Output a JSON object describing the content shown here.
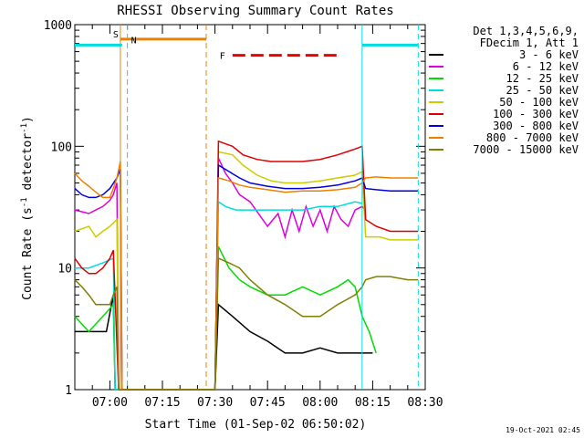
{
  "chart_data": {
    "type": "line",
    "title": "RHESSI Observing Summary Count Rates",
    "xlabel": "Start Time (01-Sep-02 06:50:02)",
    "ylabel_main": "Count Rate (s",
    "ylabel_sup1": "-1",
    "ylabel_mid": " detector",
    "ylabel_sup2": "-1",
    "ylabel_end": ")",
    "x_range_minutes_after_0650": [
      0,
      100
    ],
    "y_range": [
      1,
      1000
    ],
    "y_scale": "log",
    "x_ticks": [
      {
        "label": "07:00",
        "minutes": 10
      },
      {
        "label": "07:15",
        "minutes": 25
      },
      {
        "label": "07:30",
        "minutes": 40
      },
      {
        "label": "07:45",
        "minutes": 55
      },
      {
        "label": "08:00",
        "minutes": 70
      },
      {
        "label": "08:15",
        "minutes": 85
      },
      {
        "label": "08:30",
        "minutes": 100
      }
    ],
    "y_ticks": [
      {
        "label": "1",
        "value": 1
      },
      {
        "label": "10",
        "value": 10
      },
      {
        "label": "100",
        "value": 100
      },
      {
        "label": "1000",
        "value": 1000
      }
    ],
    "legend_header": [
      "Det 1,3,4,5,6,9,",
      "FDecim 1, Att 1"
    ],
    "legend_placement": "right",
    "series": [
      {
        "name": "3 - 6 keV",
        "color": "#000000",
        "points": [
          [
            0,
            3
          ],
          [
            4,
            3
          ],
          [
            6,
            3
          ],
          [
            9,
            3
          ],
          [
            11,
            6
          ],
          [
            11.5,
            1
          ],
          [
            40,
            1
          ],
          [
            41,
            5
          ],
          [
            45,
            4
          ],
          [
            50,
            3
          ],
          [
            55,
            2.5
          ],
          [
            60,
            2
          ],
          [
            65,
            2
          ],
          [
            70,
            2.2
          ],
          [
            75,
            2
          ],
          [
            78,
            2
          ],
          [
            82,
            2
          ],
          [
            85,
            2
          ]
        ]
      },
      {
        "name": "6 - 12 keV",
        "color": "#dd00dd",
        "points": [
          [
            0,
            30
          ],
          [
            4,
            28
          ],
          [
            6,
            30
          ],
          [
            8,
            32
          ],
          [
            10,
            36
          ],
          [
            11,
            40
          ],
          [
            12,
            50
          ],
          [
            12.5,
            1
          ],
          [
            40,
            1
          ],
          [
            41,
            80
          ],
          [
            43,
            60
          ],
          [
            45,
            50
          ],
          [
            47,
            40
          ],
          [
            50,
            35
          ],
          [
            55,
            22
          ],
          [
            58,
            28
          ],
          [
            60,
            18
          ],
          [
            62,
            30
          ],
          [
            64,
            20
          ],
          [
            66,
            32
          ],
          [
            68,
            22
          ],
          [
            70,
            30
          ],
          [
            72,
            20
          ],
          [
            74,
            32
          ],
          [
            76,
            25
          ],
          [
            78,
            22
          ],
          [
            80,
            30
          ],
          [
            82,
            32
          ],
          [
            83,
            30
          ]
        ]
      },
      {
        "name": "12 - 25 keV",
        "color": "#00dd00",
        "points": [
          [
            0,
            4
          ],
          [
            4,
            3
          ],
          [
            8,
            4
          ],
          [
            11,
            5
          ],
          [
            11.5,
            1
          ],
          [
            40,
            1
          ],
          [
            41,
            15
          ],
          [
            44,
            10
          ],
          [
            47,
            8
          ],
          [
            50,
            7
          ],
          [
            55,
            6
          ],
          [
            60,
            6
          ],
          [
            65,
            7
          ],
          [
            70,
            6
          ],
          [
            75,
            7
          ],
          [
            78,
            8
          ],
          [
            80,
            7
          ],
          [
            82,
            4
          ],
          [
            84,
            3
          ],
          [
            86,
            2
          ]
        ]
      },
      {
        "name": "25 - 50 keV",
        "color": "#00dddd",
        "points": [
          [
            0,
            10
          ],
          [
            4,
            10
          ],
          [
            8,
            11
          ],
          [
            11,
            12
          ],
          [
            11.5,
            1
          ],
          [
            40,
            1
          ],
          [
            41,
            35
          ],
          [
            43,
            32
          ],
          [
            46,
            30
          ],
          [
            50,
            30
          ],
          [
            55,
            30
          ],
          [
            60,
            30
          ],
          [
            65,
            30
          ],
          [
            70,
            32
          ],
          [
            75,
            32
          ],
          [
            80,
            35
          ],
          [
            82,
            34
          ]
        ]
      },
      {
        "name": "50 - 100 keV",
        "color": "#cccc00",
        "points": [
          [
            0,
            20
          ],
          [
            4,
            22
          ],
          [
            6,
            18
          ],
          [
            8,
            20
          ],
          [
            10,
            22
          ],
          [
            12,
            25
          ],
          [
            12.5,
            1
          ],
          [
            40,
            1
          ],
          [
            41,
            90
          ],
          [
            45,
            85
          ],
          [
            48,
            70
          ],
          [
            52,
            58
          ],
          [
            56,
            52
          ],
          [
            60,
            50
          ],
          [
            65,
            50
          ],
          [
            70,
            52
          ],
          [
            75,
            55
          ],
          [
            80,
            58
          ],
          [
            82,
            62
          ],
          [
            83,
            18
          ],
          [
            87,
            18
          ],
          [
            90,
            17
          ],
          [
            95,
            17
          ],
          [
            98,
            17
          ]
        ]
      },
      {
        "name": "100 - 300 keV",
        "color": "#dd0000",
        "points": [
          [
            0,
            12
          ],
          [
            2,
            10
          ],
          [
            4,
            9
          ],
          [
            6,
            9
          ],
          [
            8,
            10
          ],
          [
            10,
            12
          ],
          [
            11,
            14
          ],
          [
            12.5,
            1
          ],
          [
            40,
            1
          ],
          [
            41,
            110
          ],
          [
            45,
            100
          ],
          [
            48,
            85
          ],
          [
            52,
            78
          ],
          [
            56,
            75
          ],
          [
            60,
            75
          ],
          [
            65,
            75
          ],
          [
            70,
            78
          ],
          [
            75,
            85
          ],
          [
            80,
            95
          ],
          [
            82,
            100
          ],
          [
            83,
            25
          ],
          [
            86,
            22
          ],
          [
            90,
            20
          ],
          [
            95,
            20
          ],
          [
            98,
            20
          ]
        ]
      },
      {
        "name": "300 - 800 keV",
        "color": "#0000dd",
        "points": [
          [
            0,
            45
          ],
          [
            2,
            40
          ],
          [
            4,
            38
          ],
          [
            6,
            38
          ],
          [
            8,
            40
          ],
          [
            10,
            45
          ],
          [
            12,
            55
          ],
          [
            13,
            65
          ],
          [
            13.5,
            1
          ],
          [
            40,
            1
          ],
          [
            41,
            70
          ],
          [
            44,
            62
          ],
          [
            47,
            55
          ],
          [
            50,
            50
          ],
          [
            55,
            47
          ],
          [
            60,
            45
          ],
          [
            65,
            45
          ],
          [
            70,
            46
          ],
          [
            75,
            48
          ],
          [
            80,
            52
          ],
          [
            82,
            55
          ],
          [
            83,
            45
          ],
          [
            86,
            44
          ],
          [
            90,
            43
          ],
          [
            95,
            43
          ],
          [
            98,
            43
          ]
        ]
      },
      {
        "name": "800 - 7000 keV",
        "color": "#ee8000",
        "points": [
          [
            0,
            60
          ],
          [
            2,
            52
          ],
          [
            4,
            47
          ],
          [
            6,
            42
          ],
          [
            8,
            38
          ],
          [
            10,
            38
          ],
          [
            11,
            45
          ],
          [
            12,
            55
          ],
          [
            13,
            75
          ],
          [
            13.5,
            1
          ],
          [
            40,
            1
          ],
          [
            41,
            55
          ],
          [
            44,
            52
          ],
          [
            47,
            48
          ],
          [
            50,
            46
          ],
          [
            55,
            44
          ],
          [
            60,
            42
          ],
          [
            65,
            43
          ],
          [
            70,
            43
          ],
          [
            75,
            44
          ],
          [
            80,
            46
          ],
          [
            82,
            50
          ],
          [
            83,
            55
          ],
          [
            86,
            56
          ],
          [
            90,
            55
          ],
          [
            95,
            55
          ],
          [
            98,
            55
          ]
        ]
      },
      {
        "name": "7000 - 15000 keV",
        "color": "#808000",
        "points": [
          [
            0,
            8
          ],
          [
            2,
            7
          ],
          [
            4,
            6
          ],
          [
            6,
            5
          ],
          [
            8,
            5
          ],
          [
            10,
            5
          ],
          [
            11,
            6
          ],
          [
            12,
            7
          ],
          [
            12.5,
            1
          ],
          [
            40,
            1
          ],
          [
            41,
            12
          ],
          [
            44,
            11
          ],
          [
            47,
            10
          ],
          [
            50,
            8
          ],
          [
            55,
            6
          ],
          [
            60,
            5
          ],
          [
            65,
            4
          ],
          [
            70,
            4
          ],
          [
            75,
            5
          ],
          [
            80,
            6
          ],
          [
            82,
            7
          ],
          [
            83,
            8
          ],
          [
            86,
            8.5
          ],
          [
            90,
            8.5
          ],
          [
            95,
            8
          ],
          [
            98,
            8
          ]
        ]
      }
    ],
    "flags": [
      {
        "label": "S",
        "color": "#ee8000",
        "x_start": 13,
        "x_end": 37.5,
        "level": 760
      },
      {
        "label": "N",
        "color": "#00dddd",
        "x_start": 0,
        "x_end": 15,
        "level": 680
      },
      {
        "label": "F",
        "color": "#ee0000",
        "x_start": 45,
        "x_end": 76,
        "level": 560,
        "dashed": true
      }
    ],
    "cyan_flag_segments": [
      [
        0,
        13.5
      ],
      [
        82,
        98
      ]
    ],
    "orange_flag_segment": [
      13,
      37.5
    ],
    "vertical_markers": [
      {
        "x": 13,
        "color": "#ee8000",
        "style": "solid"
      },
      {
        "x": 15,
        "color": "#00dddd",
        "style": "dashed"
      },
      {
        "x": 37.5,
        "color": "#ee8000",
        "style": "dashed"
      },
      {
        "x": 82,
        "color": "#00dddd",
        "style": "solid"
      },
      {
        "x": 98,
        "color": "#00dddd",
        "style": "dashed"
      }
    ],
    "timestamp": "19-Oct-2021 02:45"
  }
}
